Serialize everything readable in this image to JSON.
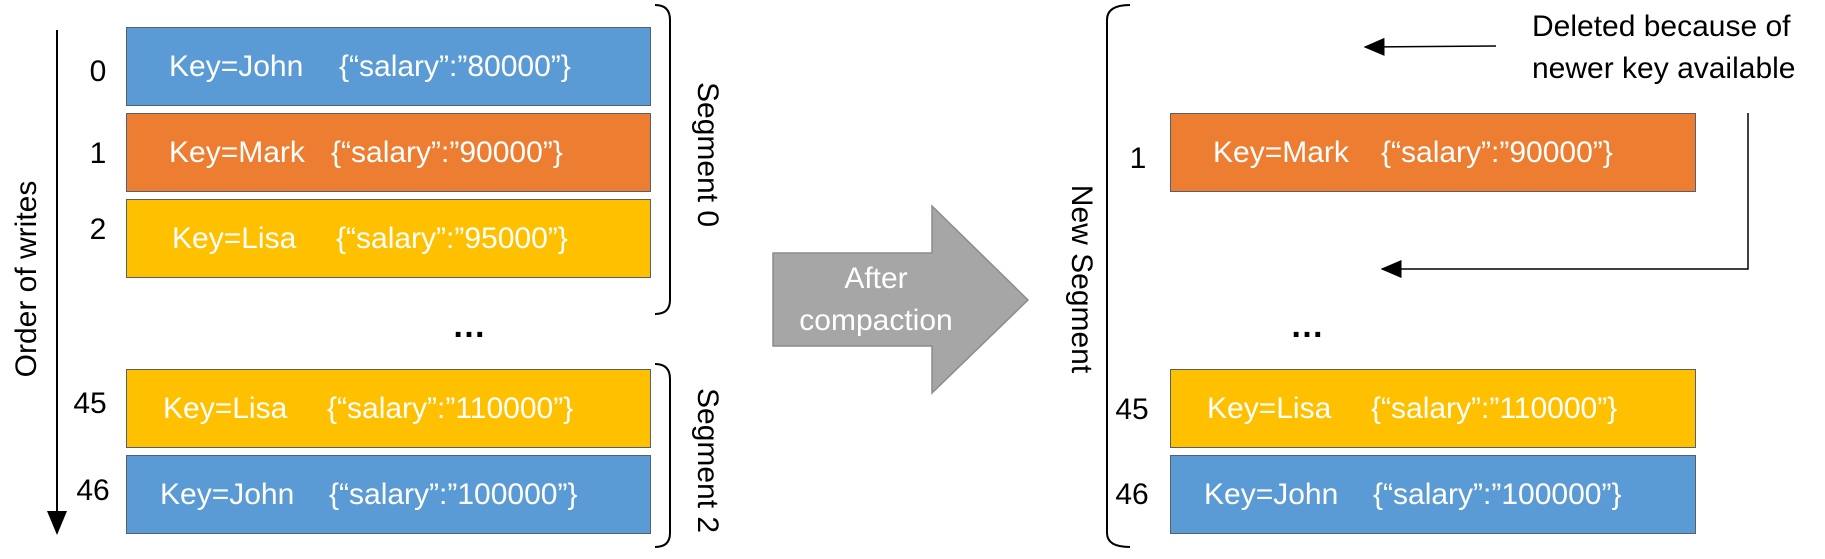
{
  "left": {
    "axis_label": "Order of writes",
    "rows": [
      {
        "index": "0",
        "key": "Key=John",
        "value": "{“salary”:”80000”}",
        "color": "#5b9bd5"
      },
      {
        "index": "1",
        "key": "Key=Mark",
        "value": "{“salary”:”90000”}",
        "color": "#ed7d31"
      },
      {
        "index": "2",
        "key": "Key=Lisa",
        "value": "{“salary”:”95000”}",
        "color": "#ffc000"
      },
      {
        "index": "45",
        "key": "Key=Lisa",
        "value": "{“salary”:”110000”}",
        "color": "#ffc000"
      },
      {
        "index": "46",
        "key": "Key=John",
        "value": "{“salary”:”100000”}",
        "color": "#5b9bd5"
      }
    ],
    "ellipsis": "…",
    "segment_0_label": "Segment 0",
    "segment_2_label": "Segment 2"
  },
  "center_arrow": {
    "line1": "After",
    "line2": "compaction",
    "color": "#a6a6a6"
  },
  "right": {
    "segment_label": "New Segment",
    "rows": [
      {
        "index": "1",
        "key": "Key=Mark",
        "value": "{“salary”:”90000”}",
        "color": "#ed7d31"
      },
      {
        "index": "45",
        "key": "Key=Lisa",
        "value": "{“salary”:”110000”}",
        "color": "#ffc000"
      },
      {
        "index": "46",
        "key": "Key=John",
        "value": "{“salary”:”100000”}",
        "color": "#5b9bd5"
      }
    ],
    "ellipsis": "…",
    "note_line1": "Deleted because of",
    "note_line2": "newer key available"
  }
}
